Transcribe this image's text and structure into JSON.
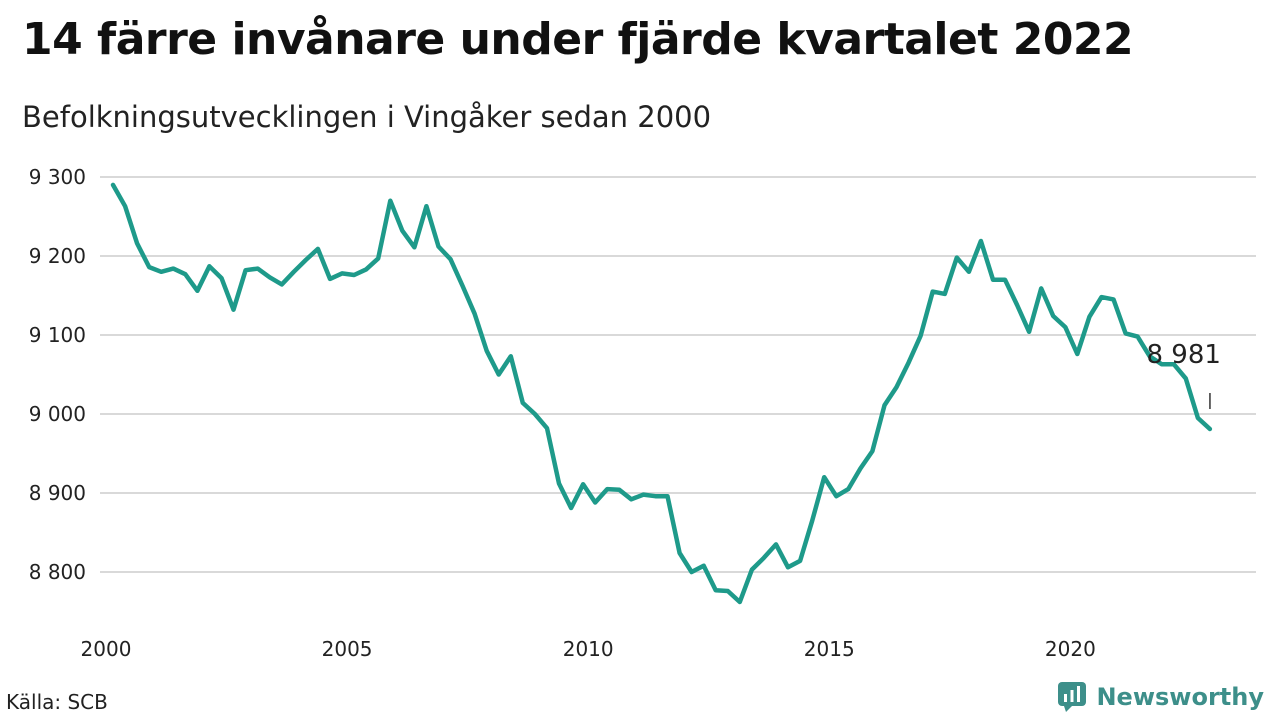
{
  "header": {
    "title": "14 färre invånare under fjärde kvartalet 2022",
    "subtitle": "Befolkningsutvecklingen i Vingåker sedan 2000"
  },
  "footer": {
    "source": "Källa: SCB",
    "brand": "Newsworthy",
    "brand_icon": "newsworthy-logo-icon"
  },
  "colors": {
    "line": "#1e9a8a",
    "grid": "#d9d9d9",
    "brand": "#3d8f8a"
  },
  "chart_data": {
    "type": "line",
    "title": "14 färre invånare under fjärde kvartalet 2022",
    "subtitle": "Befolkningsutvecklingen i Vingåker sedan 2000",
    "xlabel": "",
    "ylabel": "",
    "x_ticks": [
      "2000",
      "2005",
      "2010",
      "2015",
      "2020"
    ],
    "y_ticks": [
      "8 800",
      "8 900",
      "9 000",
      "9 100",
      "9 200",
      "9 300"
    ],
    "y_tick_values": [
      8800,
      8900,
      9000,
      9100,
      9200,
      9300
    ],
    "ylim": [
      8740,
      9310
    ],
    "xlim": [
      2000.0,
      2023.0
    ],
    "grid": "horizontal",
    "end_label": "8 981",
    "series": [
      {
        "x": [
          2000.0,
          2000.25,
          2000.5,
          2000.75,
          2001.0,
          2001.25,
          2001.5,
          2001.75,
          2002.0,
          2002.25,
          2002.5,
          2002.75,
          2003.0,
          2003.25,
          2003.5,
          2003.75,
          2004.0,
          2004.25,
          2004.5,
          2004.75,
          2005.0,
          2005.25,
          2005.5,
          2005.75,
          2006.0,
          2006.25,
          2006.5,
          2006.75,
          2007.0,
          2007.25,
          2007.5,
          2007.75,
          2008.0,
          2008.25,
          2008.5,
          2008.75,
          2009.0,
          2009.25,
          2009.5,
          2009.75,
          2010.0,
          2010.25,
          2010.5,
          2010.75,
          2011.0,
          2011.25,
          2011.5,
          2011.75,
          2012.0,
          2012.25,
          2012.5,
          2012.75,
          2013.0,
          2013.25,
          2013.5,
          2013.75,
          2014.0,
          2014.25,
          2014.5,
          2014.75,
          2015.0,
          2015.25,
          2015.5,
          2015.75,
          2016.0,
          2016.25,
          2016.5,
          2016.75,
          2017.0,
          2017.25,
          2017.5,
          2017.75,
          2018.0,
          2018.25,
          2018.5,
          2018.75,
          2019.0,
          2019.25,
          2019.5,
          2019.75,
          2020.0,
          2020.25,
          2020.5,
          2020.75,
          2021.0,
          2021.25,
          2021.5,
          2021.75,
          2022.0,
          2022.25,
          2022.5,
          2022.75
        ],
        "values": [
          9290,
          9263,
          9216,
          9186,
          9180,
          9184,
          9177,
          9156,
          9187,
          9172,
          9132,
          9182,
          9184,
          9173,
          9164,
          9180,
          9195,
          9209,
          9171,
          9178,
          9176,
          9183,
          9197,
          9270,
          9232,
          9211,
          9263,
          9212,
          9196,
          9162,
          9127,
          9080,
          9050,
          9073,
          9014,
          9000,
          8982,
          8912,
          8881,
          8911,
          8888,
          8905,
          8904,
          8892,
          8898,
          8896,
          8896,
          8824,
          8800,
          8808,
          8777,
          8776,
          8762,
          8803,
          8818,
          8835,
          8806,
          8814,
          8865,
          8920,
          8896,
          8905,
          8931,
          8953,
          9011,
          9034,
          9065,
          9099,
          9155,
          9152,
          9198,
          9180,
          9219,
          9170,
          9170,
          9138,
          9104,
          9159,
          9124,
          9110,
          9076,
          9123,
          9148,
          9145,
          9102,
          9098,
          9073,
          9063,
          9063,
          9045,
          8995,
          8981
        ]
      }
    ]
  }
}
